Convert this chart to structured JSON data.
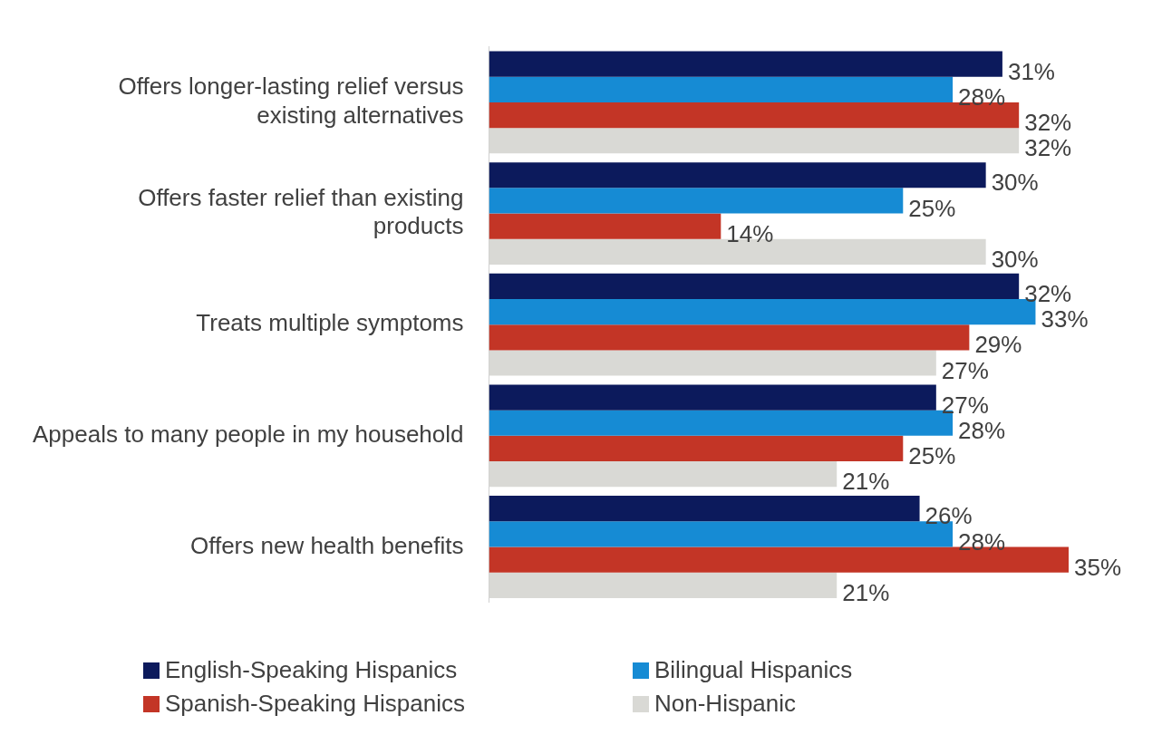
{
  "chart_data": {
    "type": "bar",
    "orientation": "horizontal",
    "legend": "bottom",
    "categories": [
      "Offers longer-lasting relief versus existing alternatives",
      "Offers faster relief than existing products",
      "Treats multiple symptoms",
      "Appeals to many people in my household",
      "Offers new health benefits"
    ],
    "series": [
      {
        "name": "English-Speaking Hispanics",
        "color": "#0c1a5c",
        "values": [
          31,
          30,
          32,
          27,
          26
        ],
        "value_labels": [
          "31%",
          "30%",
          "32%",
          "27%",
          "26%"
        ]
      },
      {
        "name": "Bilingual Hispanics",
        "color": "#168bd4",
        "values": [
          28,
          25,
          33,
          28,
          28
        ],
        "value_labels": [
          "28%",
          "25%",
          "33%",
          "28%",
          "28%"
        ]
      },
      {
        "name": "Spanish-Speaking Hispanics",
        "color": "#c33526",
        "values": [
          32,
          14,
          29,
          25,
          35
        ],
        "value_labels": [
          "32%",
          "14%",
          "29%",
          "25%",
          "35%"
        ]
      },
      {
        "name": "Non-Hispanic",
        "color": "#d9d9d5",
        "values": [
          32,
          30,
          27,
          21,
          21
        ],
        "value_labels": [
          "32%",
          "30%",
          "27%",
          "21%",
          "21%"
        ]
      }
    ]
  }
}
